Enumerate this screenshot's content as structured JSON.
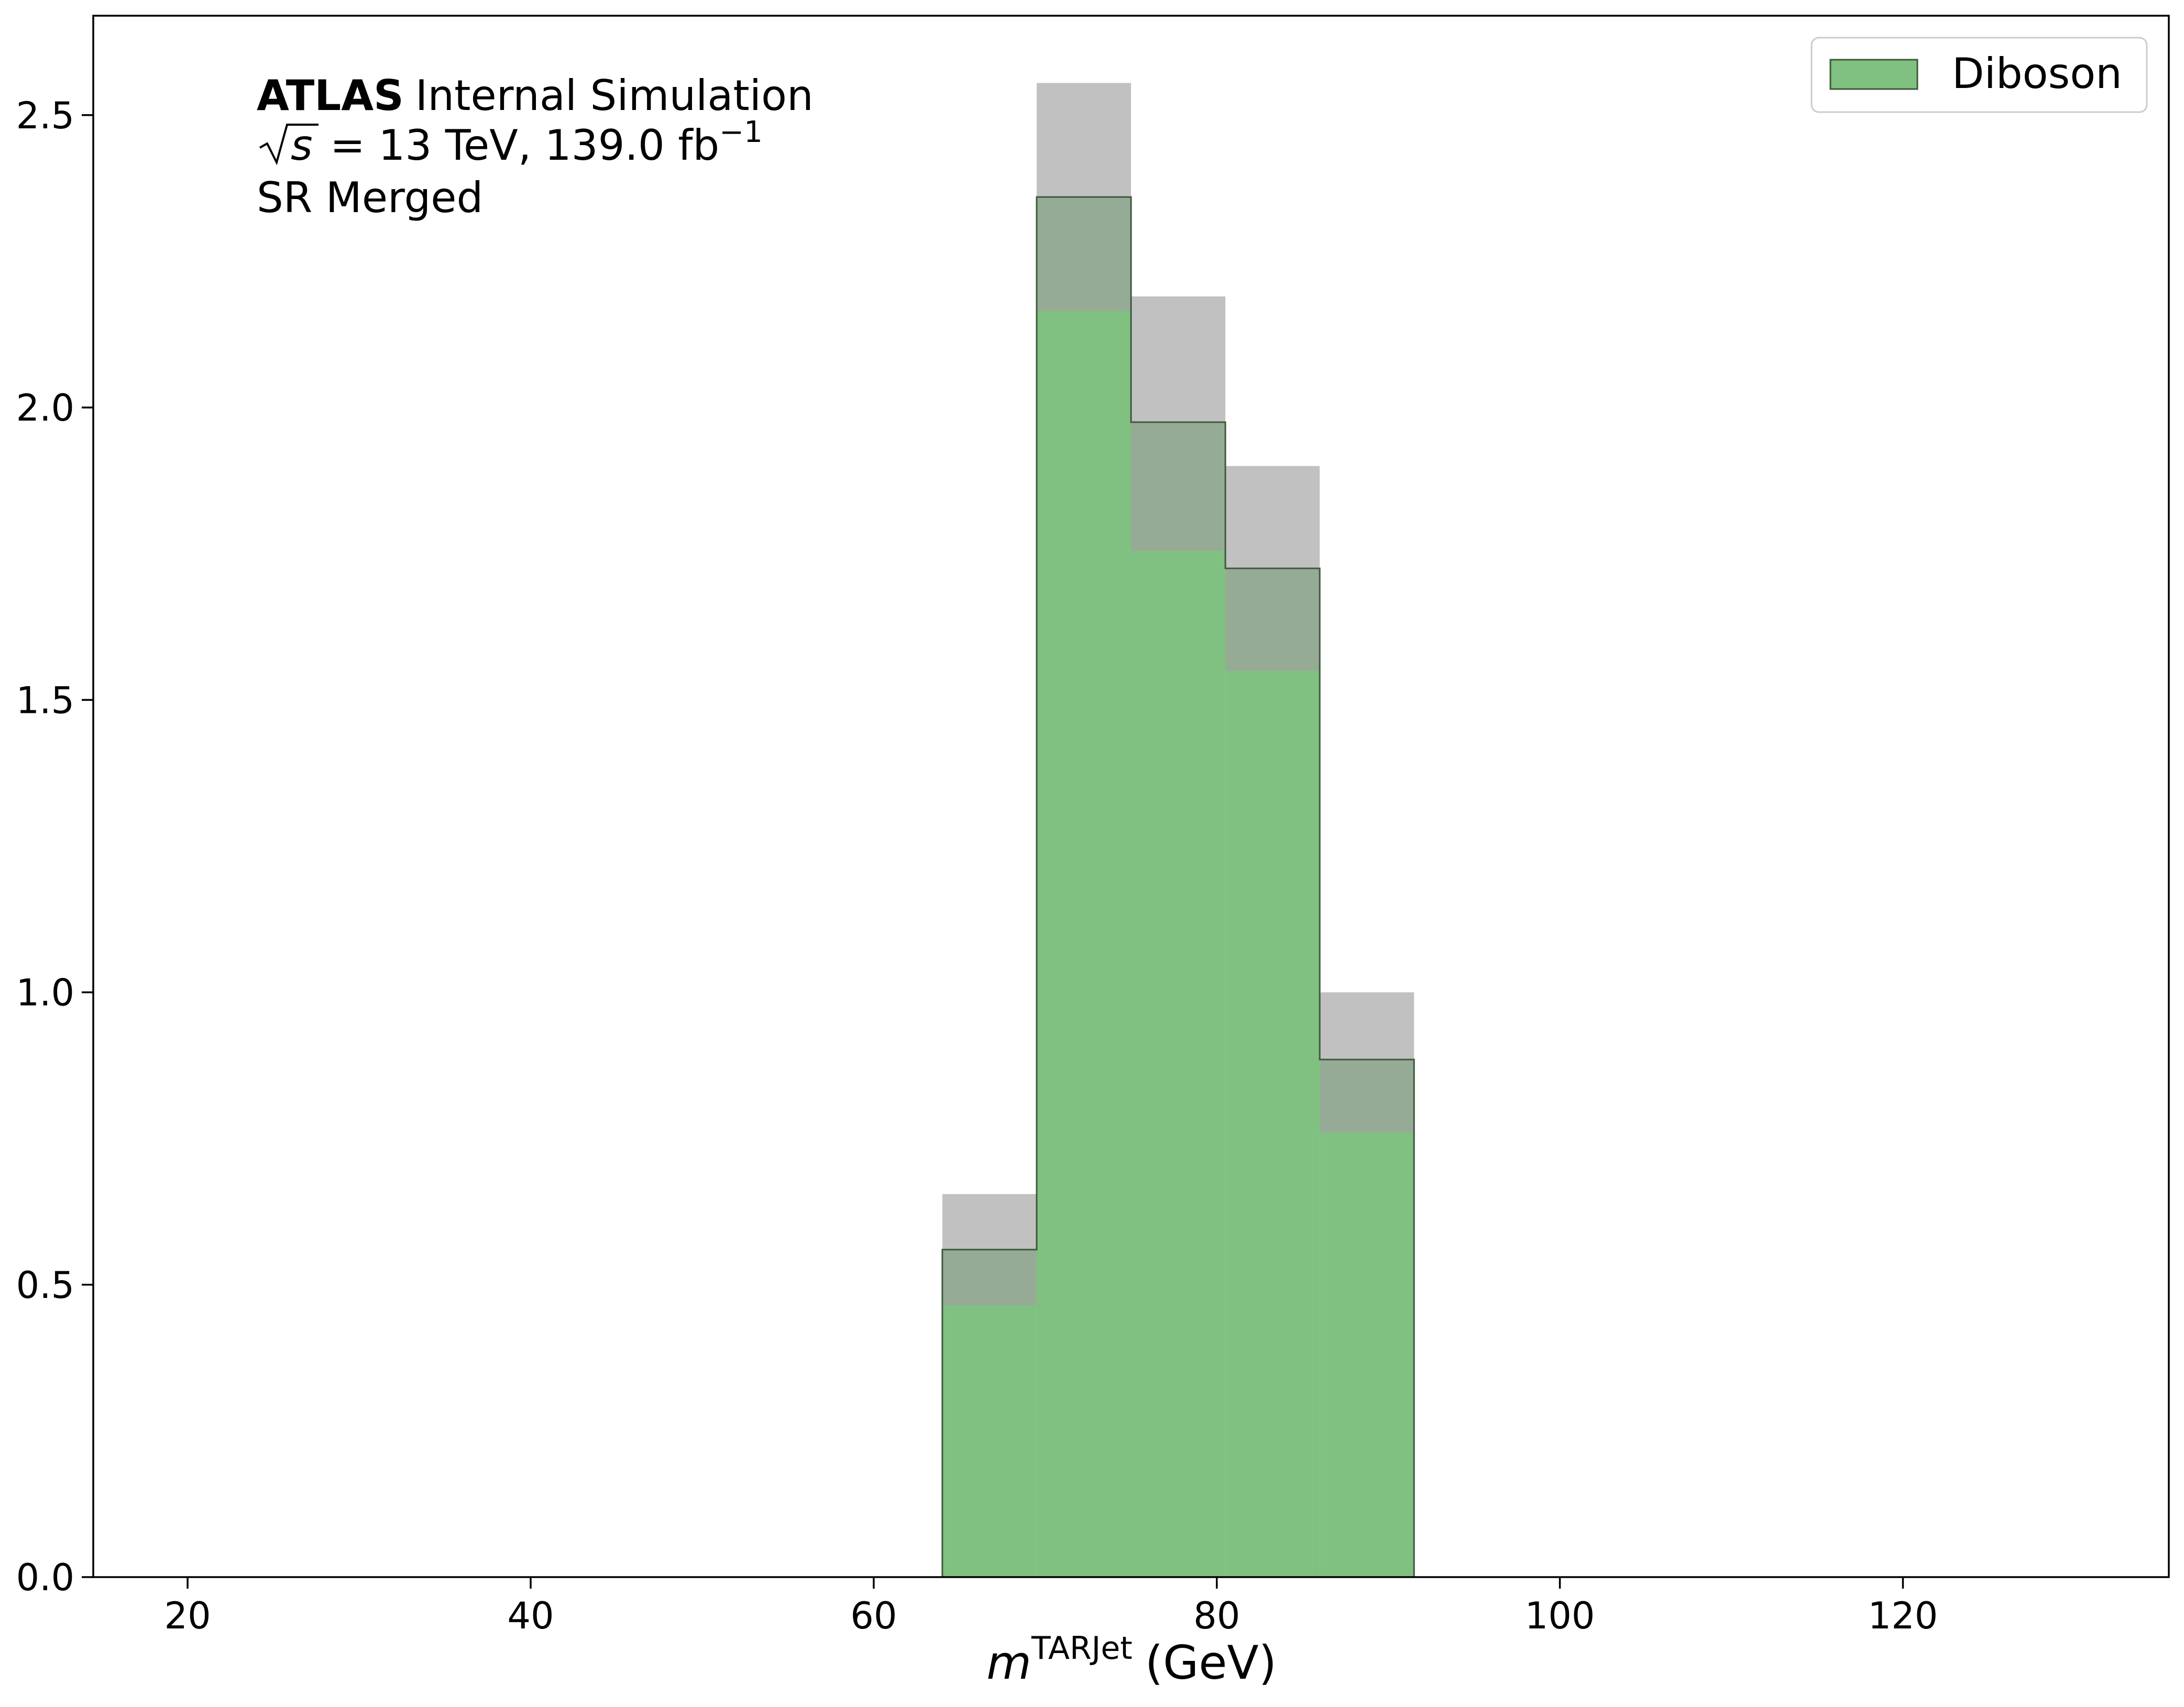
{
  "chart_data": {
    "type": "bar",
    "title": "",
    "annotations": {
      "experiment": "ATLAS",
      "status": "Internal Simulation",
      "energy_line_rest": "= 13 TeV, 139.0 fb",
      "lumi_exponent": "−1",
      "region": "SR Merged"
    },
    "xlabel": {
      "symbol": "m",
      "superscript": "TARJet",
      "unit": "(GeV)"
    },
    "ylabel": "",
    "xlim": [
      14.5,
      135.5
    ],
    "ylim": [
      0,
      2.67
    ],
    "xticks": [
      20,
      40,
      60,
      80,
      100,
      120
    ],
    "yticks": [
      0.0,
      0.5,
      1.0,
      1.5,
      2.0,
      2.5
    ],
    "xtick_labels": [
      "20",
      "40",
      "60",
      "80",
      100,
      "120"
    ],
    "ytick_labels": [
      "0.0",
      "0.5",
      "1.0",
      "1.5",
      "2.0",
      "2.5"
    ],
    "grid": false,
    "legend": {
      "position": "top-right",
      "entries": [
        {
          "label": "Diboson",
          "color": "#80c080"
        }
      ]
    },
    "series": [
      {
        "name": "Diboson",
        "color": "#80c080",
        "edge_color": "#3c5a3c",
        "uncertainty_color": "#a0a0a0",
        "bins": [
          {
            "x0": 64.0,
            "x1": 69.5,
            "value": 0.56,
            "err_low": 0.465,
            "err_high": 0.655
          },
          {
            "x0": 69.5,
            "x1": 75.0,
            "value": 2.36,
            "err_low": 2.165,
            "err_high": 2.555
          },
          {
            "x0": 75.0,
            "x1": 80.5,
            "value": 1.975,
            "err_low": 1.755,
            "err_high": 2.19
          },
          {
            "x0": 80.5,
            "x1": 86.0,
            "value": 1.725,
            "err_low": 1.55,
            "err_high": 1.9
          },
          {
            "x0": 86.0,
            "x1": 91.5,
            "value": 0.885,
            "err_low": 0.76,
            "err_high": 1.0
          }
        ]
      }
    ]
  }
}
